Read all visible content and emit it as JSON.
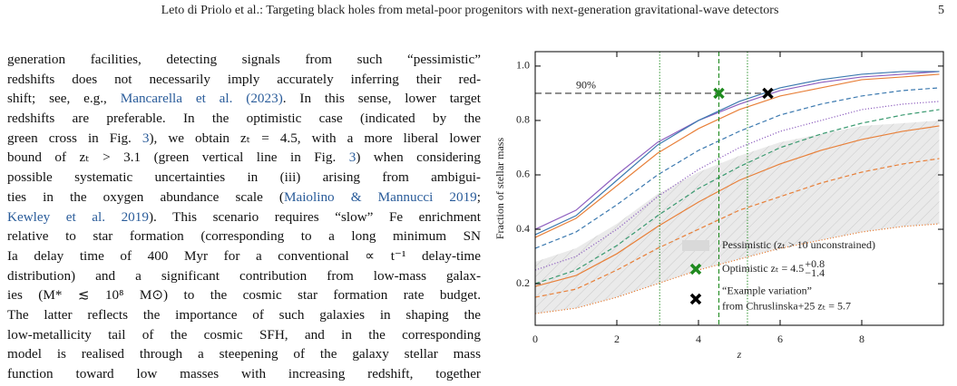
{
  "header": {
    "running_title": "Leto di Priolo et al.: Targeting black holes from metal-poor progenitors with next-generation gravitational-wave detectors",
    "page_number": "5"
  },
  "body": {
    "lines": [
      [
        "generation facilities, detecting signals from such “pessimistic”"
      ],
      [
        "redshifts does not necessarily imply accurately inferring their red-"
      ],
      [
        "shift; see, e.g., ",
        {
          "text": "Mancarella et al. (2023)",
          "link": true
        },
        ". In this sense, lower target"
      ],
      [
        "redshifts are preferable. In the optimistic case (indicated by the"
      ],
      [
        "green cross in Fig. ",
        {
          "text": "3",
          "link": true
        },
        "), we obtain zₜ = 4.5, with a more liberal lower"
      ],
      [
        "bound of zₜ > 3.1 (green vertical line in Fig. ",
        {
          "text": "3",
          "link": true
        },
        ") when considering"
      ],
      [
        "possible systematic uncertainties in (iii) arising from ambigui-"
      ],
      [
        "ties in the oxygen abundance scale (",
        {
          "text": "Maiolino & Mannucci 2019",
          "link": true
        },
        ";"
      ],
      [
        {
          "text": "Kewley et al. 2019",
          "link": true
        },
        "). This scenario requires “slow” Fe enrichment"
      ],
      [
        "relative to star formation (corresponding to a long minimum SN"
      ],
      [
        "Ia delay time of 400 Myr for a conventional ∝ t⁻¹ delay-time"
      ],
      [
        "distribution) and a significant contribution from low-mass galax-"
      ],
      [
        "ies (M* ≲ 10⁸ M⊙) to the cosmic star formation rate budget."
      ],
      [
        "The latter reflects the importance of such galaxies in shaping the"
      ],
      [
        "low-metallicity tail of the cosmic SFH, and in the corresponding"
      ],
      [
        "model is realised through a steepening of the galaxy stellar mass"
      ],
      [
        "function toward low masses with increasing redshift, together"
      ]
    ]
  },
  "chart_data": {
    "type": "line",
    "x_label": "z",
    "y_label": "Fraction of stellar mass",
    "xlim": [
      0,
      10
    ],
    "ylim": [
      0.047,
      1.053
    ],
    "xticks": [
      0,
      2,
      4,
      6,
      8
    ],
    "yticks": [
      0.2,
      0.4,
      0.6,
      0.8,
      {
        "value": 1,
        "label": "1.0"
      }
    ],
    "x": [
      0,
      1,
      2,
      3,
      4,
      5,
      6,
      7,
      8,
      9,
      9.9
    ],
    "shaded_region": {
      "name": "Pessimistic (zₜ > 10 unconstrained)",
      "color": "#d9d9d9",
      "lower": [
        0.09,
        0.11,
        0.15,
        0.2,
        0.25,
        0.29,
        0.33,
        0.36,
        0.39,
        0.41,
        0.42
      ],
      "upper": [
        0.28,
        0.33,
        0.42,
        0.53,
        0.61,
        0.67,
        0.72,
        0.75,
        0.78,
        0.79,
        0.8
      ]
    },
    "series": [
      {
        "color": "#8e5fbf",
        "style": "solid",
        "values": [
          0.4,
          0.47,
          0.6,
          0.72,
          0.8,
          0.86,
          0.91,
          0.94,
          0.96,
          0.97,
          0.98
        ]
      },
      {
        "color": "#3d7ab0",
        "style": "solid",
        "values": [
          0.38,
          0.45,
          0.58,
          0.71,
          0.8,
          0.87,
          0.92,
          0.95,
          0.97,
          0.98,
          0.98
        ]
      },
      {
        "color": "#e8803a",
        "style": "solid",
        "values": [
          0.37,
          0.44,
          0.56,
          0.68,
          0.77,
          0.84,
          0.89,
          0.92,
          0.95,
          0.96,
          0.97
        ]
      },
      {
        "color": "#3d7ab0",
        "style": "dashed",
        "values": [
          0.33,
          0.39,
          0.49,
          0.6,
          0.69,
          0.76,
          0.82,
          0.86,
          0.89,
          0.91,
          0.92
        ]
      },
      {
        "color": "#8e5fbf",
        "style": "dotted",
        "values": [
          0.25,
          0.3,
          0.4,
          0.52,
          0.62,
          0.7,
          0.76,
          0.8,
          0.84,
          0.86,
          0.87
        ]
      },
      {
        "color": "#3a9a70",
        "style": "dashed",
        "values": [
          0.2,
          0.25,
          0.34,
          0.45,
          0.55,
          0.63,
          0.7,
          0.75,
          0.79,
          0.82,
          0.84
        ]
      },
      {
        "color": "#e8803a",
        "style": "solid",
        "values": [
          0.19,
          0.23,
          0.31,
          0.41,
          0.5,
          0.58,
          0.64,
          0.69,
          0.73,
          0.76,
          0.78
        ]
      },
      {
        "color": "#e8803a",
        "style": "dashed",
        "values": [
          0.15,
          0.18,
          0.25,
          0.33,
          0.4,
          0.47,
          0.52,
          0.57,
          0.61,
          0.64,
          0.66
        ]
      },
      {
        "color": "#e8803a",
        "style": "dotted",
        "values": [
          0.09,
          0.11,
          0.15,
          0.2,
          0.25,
          0.29,
          0.33,
          0.36,
          0.39,
          0.41,
          0.42
        ]
      }
    ],
    "hline": {
      "y": 0.9,
      "xmax": 5.8,
      "label": "90%",
      "color": "#888888"
    },
    "vlines": [
      {
        "x": 3.05,
        "style": "dotted",
        "color": "#1f8a1f"
      },
      {
        "x": 4.5,
        "style": "dashed",
        "color": "#1f8a1f"
      },
      {
        "x": 5.2,
        "style": "dotted",
        "color": "#1f8a1f"
      }
    ],
    "markers": [
      {
        "x": 4.5,
        "y": 0.9,
        "color": "#1f8a1f",
        "legend": [
          "Optimistic zₜ = 4.5"
        ],
        "upper_error": "+0.8",
        "lower_error": "−1.4"
      },
      {
        "x": 5.7,
        "y": 0.9,
        "color": "#000000",
        "legend": [
          "“Example variation”",
          "from Chruslinska+25 zₜ = 5.7"
        ]
      }
    ]
  }
}
